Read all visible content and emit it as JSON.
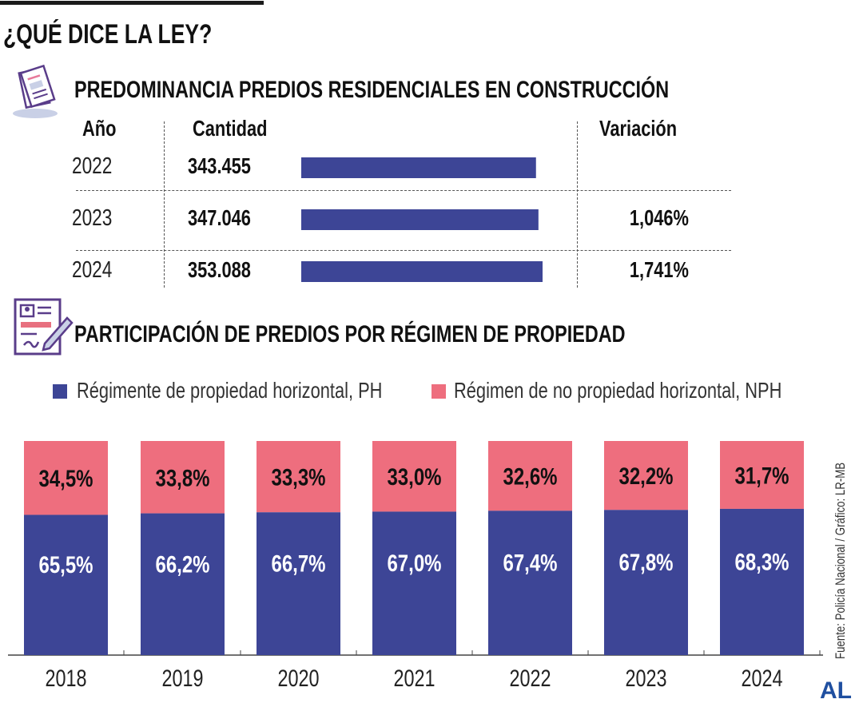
{
  "header": {
    "title": "¿QUÉ DICE LA LEY?"
  },
  "section1": {
    "title": "PREDOMINANCIA PREDIOS RESIDENCIALES EN CONSTRUCCIÓN",
    "columns": [
      "Año",
      "Cantidad",
      "Variación"
    ],
    "rows": [
      {
        "year": "2022",
        "quantity": "343.455",
        "value": 343455,
        "variation": ""
      },
      {
        "year": "2023",
        "quantity": "347.046",
        "value": 347046,
        "variation": "1,046%"
      },
      {
        "year": "2024",
        "quantity": "353.088",
        "value": 353088,
        "variation": "1,741%"
      }
    ]
  },
  "section2": {
    "title": "PARTICIPACIÓN DE PREDIOS POR RÉGIMEN DE PROPIEDAD"
  },
  "colors": {
    "ph": "#3d4596",
    "nph": "#ee6e7e"
  },
  "chart_data": {
    "type": "bar",
    "stacked": true,
    "title": "PARTICIPACIÓN DE PREDIOS POR RÉGIMEN DE PROPIEDAD",
    "categories": [
      "2018",
      "2019",
      "2020",
      "2021",
      "2022",
      "2023",
      "2024"
    ],
    "series": [
      {
        "name": "Régimente de propiedad horizontal, PH",
        "values": [
          65.5,
          66.2,
          66.7,
          67.0,
          67.4,
          67.8,
          68.3
        ],
        "labels": [
          "65,5%",
          "66,2%",
          "66,7%",
          "67,0%",
          "67,4%",
          "67,8%",
          "68,3%"
        ]
      },
      {
        "name": "Régimen de no propiedad horizontal, NPH",
        "values": [
          34.5,
          33.8,
          33.3,
          33.0,
          32.6,
          32.2,
          31.7
        ],
        "labels": [
          "34,5%",
          "33,8%",
          "33,3%",
          "33,0%",
          "32,6%",
          "32,2%",
          "31,7%"
        ]
      }
    ],
    "ylim": [
      0,
      100
    ],
    "legend": "top"
  },
  "footer": {
    "source": "Fuente: Policía Nacional / Gráfico: LR-MB",
    "logo": "AL"
  }
}
